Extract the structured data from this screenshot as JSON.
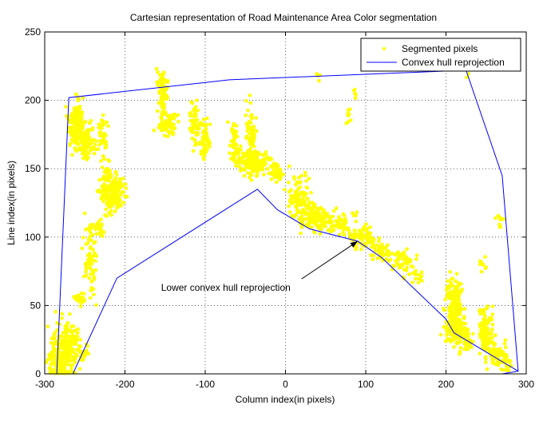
{
  "chart_data": {
    "type": "scatter",
    "title": "Cartesian representation of Road Maintenance Area Color segmentation",
    "xlabel": "Column index(in pixels)",
    "ylabel": "Line index(in pixels)",
    "xlim": [
      -300,
      300
    ],
    "ylim": [
      0,
      250
    ],
    "xticks": [
      -300,
      -200,
      -100,
      0,
      100,
      200,
      300
    ],
    "yticks": [
      0,
      50,
      100,
      150,
      200,
      250
    ],
    "xtick_labels": [
      "-300",
      "-200",
      "-100",
      "0",
      "100",
      "200",
      "300"
    ],
    "ytick_labels": [
      "0",
      "50",
      "100",
      "150",
      "200",
      "250"
    ],
    "grid": true,
    "legend_position": "top-right",
    "series": [
      {
        "name": "Segmented pixels",
        "kind": "scatter",
        "color": "#ffff00",
        "clusters": [
          {
            "x": -279,
            "y": 12,
            "sx": 8,
            "sy": 12,
            "n": 260
          },
          {
            "x": -266,
            "y": 26,
            "sx": 4,
            "sy": 5,
            "n": 40
          },
          {
            "x": -252,
            "y": 15,
            "sx": 4,
            "sy": 4,
            "n": 25
          },
          {
            "x": -258,
            "y": 55,
            "sx": 4,
            "sy": 2,
            "n": 25
          },
          {
            "x": -243,
            "y": 83,
            "sx": 4,
            "sy": 14,
            "n": 70
          },
          {
            "x": -231,
            "y": 105,
            "sx": 3,
            "sy": 5,
            "n": 18
          },
          {
            "x": -261,
            "y": 182,
            "sx": 5,
            "sy": 9,
            "n": 140
          },
          {
            "x": -248,
            "y": 170,
            "sx": 5,
            "sy": 6,
            "n": 90
          },
          {
            "x": -228,
            "y": 175,
            "sx": 3,
            "sy": 7,
            "n": 35
          },
          {
            "x": -214,
            "y": 132,
            "sx": 7,
            "sy": 7,
            "n": 160
          },
          {
            "x": -224,
            "y": 148,
            "sx": 3,
            "sy": 8,
            "n": 35
          },
          {
            "x": -153,
            "y": 205,
            "sx": 3,
            "sy": 8,
            "n": 80
          },
          {
            "x": -146,
            "y": 183,
            "sx": 6,
            "sy": 4,
            "n": 70
          },
          {
            "x": -113,
            "y": 182,
            "sx": 3,
            "sy": 8,
            "n": 60
          },
          {
            "x": -101,
            "y": 170,
            "sx": 3,
            "sy": 7,
            "n": 60
          },
          {
            "x": -65,
            "y": 175,
            "sx": 3,
            "sy": 5,
            "n": 25
          },
          {
            "x": -43,
            "y": 170,
            "sx": 3,
            "sy": 12,
            "n": 90
          },
          {
            "x": -37,
            "y": 155,
            "sx": 10,
            "sy": 4,
            "n": 130
          },
          {
            "x": -62,
            "y": 160,
            "sx": 4,
            "sy": 4,
            "n": 40
          },
          {
            "x": -10,
            "y": 146,
            "sx": 4,
            "sy": 3,
            "n": 35
          },
          {
            "x": 15,
            "y": 130,
            "sx": 7,
            "sy": 8,
            "n": 90
          },
          {
            "x": 35,
            "y": 115,
            "sx": 9,
            "sy": 5,
            "n": 110
          },
          {
            "x": 62,
            "y": 110,
            "sx": 10,
            "sy": 4,
            "n": 90
          },
          {
            "x": 95,
            "y": 100,
            "sx": 9,
            "sy": 4,
            "n": 70
          },
          {
            "x": 118,
            "y": 90,
            "sx": 6,
            "sy": 3,
            "n": 40
          },
          {
            "x": 145,
            "y": 83,
            "sx": 9,
            "sy": 4,
            "n": 50
          },
          {
            "x": 160,
            "y": 72,
            "sx": 5,
            "sy": 3,
            "n": 20
          },
          {
            "x": 210,
            "y": 50,
            "sx": 5,
            "sy": 10,
            "n": 170
          },
          {
            "x": 213,
            "y": 32,
            "sx": 7,
            "sy": 6,
            "n": 110
          },
          {
            "x": 225,
            "y": 22,
            "sx": 5,
            "sy": 5,
            "n": 40
          },
          {
            "x": 250,
            "y": 30,
            "sx": 4,
            "sy": 9,
            "n": 110
          },
          {
            "x": 262,
            "y": 15,
            "sx": 6,
            "sy": 5,
            "n": 60
          },
          {
            "x": 275,
            "y": 8,
            "sx": 5,
            "sy": 4,
            "n": 30
          },
          {
            "x": 246,
            "y": 82,
            "sx": 3,
            "sy": 3,
            "n": 10
          },
          {
            "x": 268,
            "y": 110,
            "sx": 3,
            "sy": 4,
            "n": 10
          },
          {
            "x": 40,
            "y": 218,
            "sx": 2,
            "sy": 2,
            "n": 6
          },
          {
            "x": 79,
            "y": 188,
            "sx": 2,
            "sy": 3,
            "n": 8
          },
          {
            "x": 86,
            "y": 205,
            "sx": 1,
            "sy": 2,
            "n": 5
          },
          {
            "x": 225,
            "y": 222,
            "sx": 2,
            "sy": 3,
            "n": 8
          }
        ]
      },
      {
        "name": "Convex hull reprojection",
        "kind": "line",
        "color": "#0000ff",
        "x": [
          -285,
          -270,
          -70,
          225,
          270,
          290,
          270,
          -265,
          -285
        ],
        "y": [
          0,
          202,
          215,
          222,
          145,
          2,
          0,
          0,
          0
        ]
      },
      {
        "kind": "line",
        "color": "#0000ff",
        "x": [
          -265,
          -210,
          -35,
          -10,
          30,
          90,
          120,
          200,
          210,
          290
        ],
        "y": [
          0,
          70,
          135,
          120,
          106,
          97,
          85,
          40,
          30,
          2
        ]
      }
    ],
    "annotations": [
      {
        "text": "Lower convex hull reprojection",
        "x": -155,
        "y": 63,
        "arrow_to": [
          90,
          97
        ]
      }
    ]
  }
}
